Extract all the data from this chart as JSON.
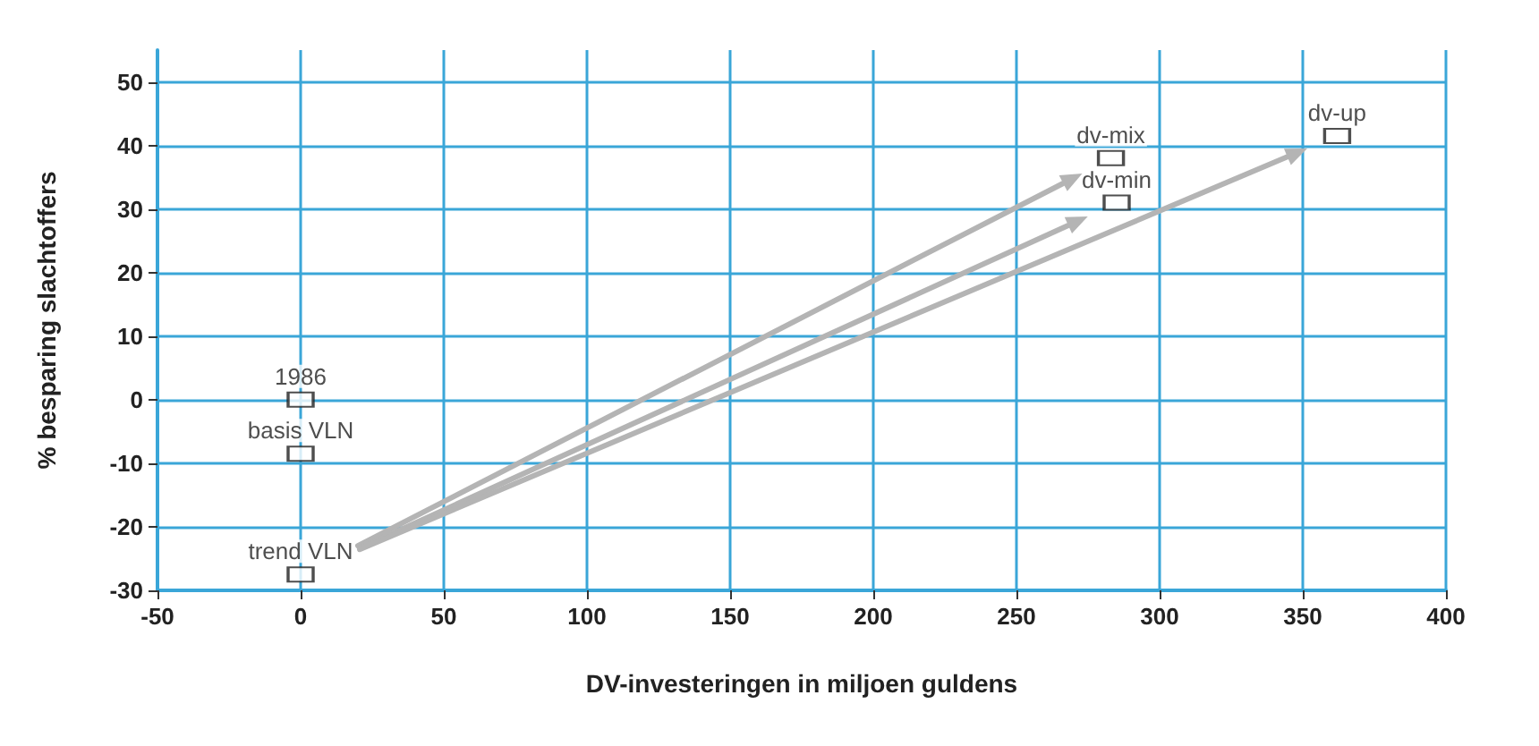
{
  "chart_data": {
    "type": "scatter",
    "xlabel": "DV-investeringen in miljoen guldens",
    "ylabel": "% besparing slachtoffers",
    "xlim": [
      -50,
      400
    ],
    "xticks": [
      -50,
      0,
      50,
      100,
      150,
      200,
      250,
      300,
      350,
      400
    ],
    "ylim": [
      -30,
      55
    ],
    "yticks": [
      -30,
      -20,
      -10,
      0,
      10,
      20,
      30,
      40,
      50
    ],
    "grid": true,
    "legend": false,
    "marker": "square",
    "series": [
      {
        "name": "1986",
        "color": "#222222",
        "x": [
          0
        ],
        "values": [
          0
        ]
      },
      {
        "name": "basis VLN",
        "color": "#222222",
        "x": [
          0
        ],
        "values": [
          -8.5
        ]
      },
      {
        "name": "trend VLN",
        "color": "#222222",
        "x": [
          0
        ],
        "values": [
          -27.5
        ]
      },
      {
        "name": "dv-mix",
        "color": "#222222",
        "x": [
          283
        ],
        "values": [
          38
        ]
      },
      {
        "name": "dv-min",
        "color": "#222222",
        "x": [
          285
        ],
        "values": [
          31
        ]
      },
      {
        "name": "dv-up",
        "color": "#222222",
        "x": [
          362
        ],
        "values": [
          41.5
        ]
      }
    ]
  }
}
